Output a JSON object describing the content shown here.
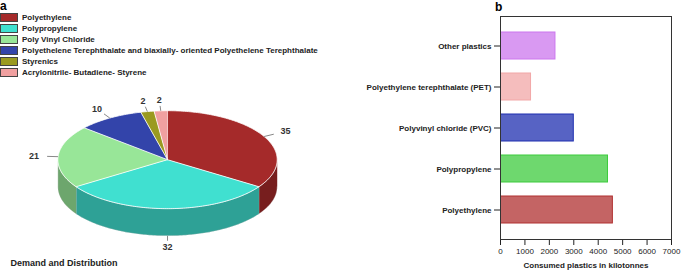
{
  "chart_data": [
    {
      "type": "pie",
      "title": "a",
      "subtitle": "Demand and Distribution",
      "categories": [
        "Polyethylene",
        "Polypropylene",
        "Poly Vinyl Chloride",
        "Polyethelene Terephthalate and biaxially- oriented Polyethelene Terephthalate",
        "Styrenics",
        "Acrylonitrile- Butadiene- Styrene"
      ],
      "values": [
        35,
        32,
        21,
        10,
        2,
        2
      ],
      "colors": [
        "#a52a2a",
        "#40e0d0",
        "#98e698",
        "#3344aa",
        "#9a9a20",
        "#f0a0a0"
      ],
      "data_labels": true,
      "legend": "top-left"
    },
    {
      "type": "bar",
      "title": "b",
      "orientation": "horizontal",
      "categories": [
        "Other plastics",
        "Polyethylene terephthalate (PET)",
        "Polyvinyl chloride (PVC)",
        "Polypropylene",
        "Polyethylene"
      ],
      "values": [
        2250,
        1250,
        3000,
        4400,
        4600
      ],
      "colors": [
        "#cc77ee",
        "#f2a7a7",
        "#1f2fb0",
        "#3dcb3d",
        "#b03030"
      ],
      "xlabel": "Consumed plastics in kilotonnes",
      "xlim": [
        0,
        7000
      ],
      "xticks": [
        0,
        1000,
        2000,
        3000,
        4000,
        5000,
        6000,
        7000
      ],
      "grid": false
    }
  ]
}
